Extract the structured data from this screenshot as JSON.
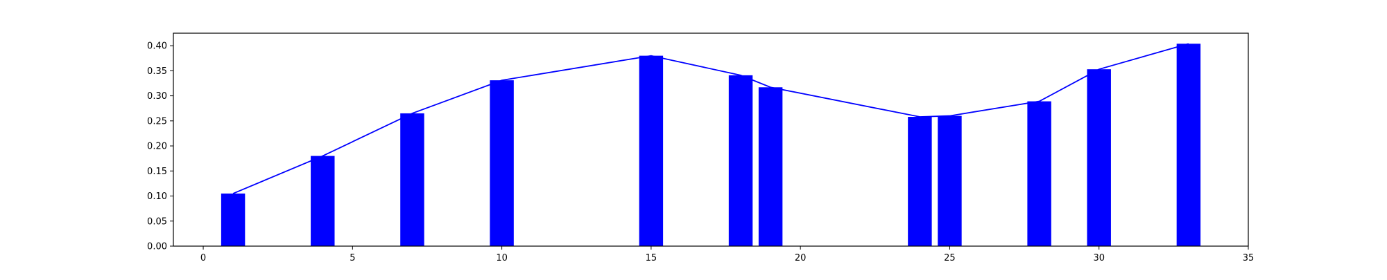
{
  "chart_data": {
    "type": "bar",
    "title": "",
    "xlabel": "",
    "ylabel": "",
    "xlim": [
      -1,
      35
    ],
    "ylim": [
      0,
      0.425
    ],
    "grid": false,
    "x_ticks": [
      0,
      5,
      10,
      15,
      20,
      25,
      30,
      35
    ],
    "x_tick_labels": [
      "0",
      "5",
      "10",
      "15",
      "20",
      "25",
      "30",
      "35"
    ],
    "y_ticks": [
      0.0,
      0.05,
      0.1,
      0.15,
      0.2,
      0.25,
      0.3,
      0.35,
      0.4
    ],
    "y_tick_labels": [
      "0.00",
      "0.05",
      "0.10",
      "0.15",
      "0.20",
      "0.25",
      "0.30",
      "0.35",
      "0.40"
    ],
    "bar_width": 0.8,
    "x": [
      1,
      4,
      7,
      10,
      15,
      18,
      19,
      24,
      25,
      28,
      30,
      33
    ],
    "values": [
      0.105,
      0.18,
      0.265,
      0.331,
      0.38,
      0.341,
      0.317,
      0.258,
      0.26,
      0.289,
      0.353,
      0.404
    ],
    "bar_color": "#0000ff",
    "line_color": "#0000ff"
  }
}
